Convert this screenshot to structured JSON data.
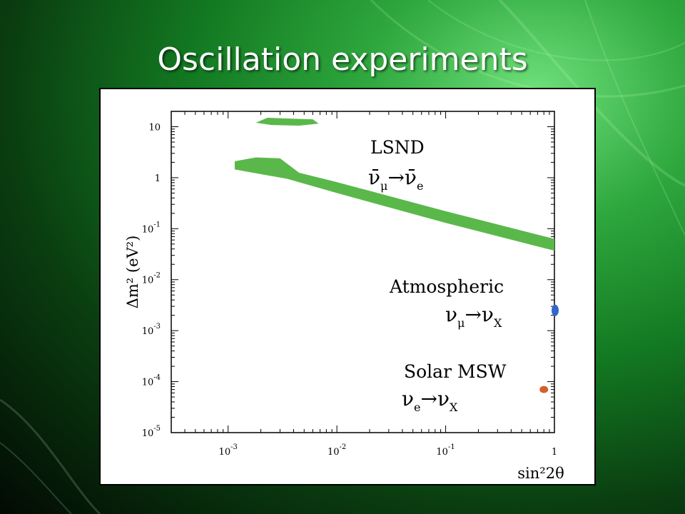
{
  "slide": {
    "title": "Oscillation experiments"
  },
  "colors": {
    "lsnd": "#5ab84a",
    "atmospheric": "#3366cc",
    "solar": "#d2602a"
  },
  "chart_data": {
    "type": "scatter",
    "title": "",
    "xlabel": "sin²2θ",
    "ylabel": "Δm² (eV²)",
    "x_scale": "log",
    "y_scale": "log",
    "xlim": [
      0.0003,
      1
    ],
    "ylim": [
      1e-05,
      20
    ],
    "x_ticks": [
      {
        "value": 0.001,
        "base": "10",
        "exp": "-3"
      },
      {
        "value": 0.01,
        "base": "10",
        "exp": "-2"
      },
      {
        "value": 0.1,
        "base": "10",
        "exp": "-1"
      },
      {
        "value": 1,
        "base": "1",
        "exp": ""
      }
    ],
    "y_ticks": [
      {
        "value": 10,
        "base": "10",
        "exp": ""
      },
      {
        "value": 1,
        "base": "1",
        "exp": ""
      },
      {
        "value": 0.1,
        "base": "10",
        "exp": "-1"
      },
      {
        "value": 0.01,
        "base": "10",
        "exp": "-2"
      },
      {
        "value": 0.001,
        "base": "10",
        "exp": "-3"
      },
      {
        "value": 0.0001,
        "base": "10",
        "exp": "-4"
      },
      {
        "value": 1e-05,
        "base": "10",
        "exp": "-5"
      }
    ],
    "regions": [
      {
        "name": "LSND",
        "label": "LSND",
        "process": {
          "from": "ν̄",
          "from_sub": "μ",
          "to": "ν̄",
          "to_sub": "e"
        },
        "band_upper": [
          [
            0.00115,
            2.1
          ],
          [
            0.0018,
            2.5
          ],
          [
            0.003,
            2.4
          ],
          [
            0.0045,
            1.25
          ],
          [
            0.01,
            0.82
          ],
          [
            0.1,
            0.22
          ],
          [
            1,
            0.063
          ]
        ],
        "band_lower": [
          [
            0.00115,
            1.45
          ],
          [
            0.0035,
            0.95
          ],
          [
            0.01,
            0.5
          ],
          [
            0.1,
            0.13
          ],
          [
            1,
            0.037
          ]
        ],
        "island": [
          [
            0.0018,
            12
          ],
          [
            0.0023,
            15
          ],
          [
            0.0035,
            14.5
          ],
          [
            0.006,
            14
          ],
          [
            0.0068,
            11.5
          ],
          [
            0.0045,
            10.5
          ],
          [
            0.0025,
            10.8
          ]
        ]
      },
      {
        "name": "Atmospheric",
        "label": "Atmospheric",
        "process": {
          "from": "ν",
          "from_sub": "μ",
          "to": "ν",
          "to_sub": "X"
        },
        "center": [
          1,
          0.0025
        ]
      },
      {
        "name": "Solar MSW",
        "label": "Solar MSW",
        "process": {
          "from": "ν",
          "from_sub": "e",
          "to": "ν",
          "to_sub": "X"
        },
        "center": [
          0.8,
          7e-05
        ]
      }
    ]
  }
}
